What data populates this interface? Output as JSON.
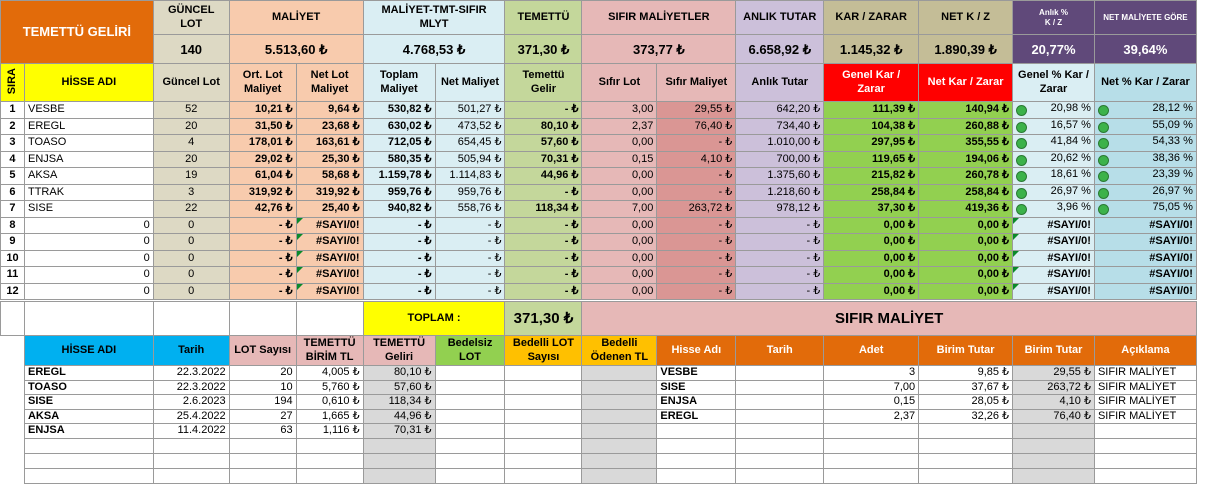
{
  "colors": {
    "orange": "#e26b0a",
    "tan": "#ddd9c4",
    "peach": "#f8cbad",
    "lightblue": "#b7dee8",
    "paleblue": "#daeef3",
    "green": "#c4d79b",
    "pink": "#e6b8b7",
    "lavender": "#ccc0da",
    "tan2": "#d9d0b3",
    "olive": "#c4bd97",
    "purple": "#60497a",
    "yellow": "#ffff00",
    "red": "#ff0000",
    "brightgreen": "#92d050",
    "blue": "#00b0f0",
    "gold": "#ffc000",
    "gray": "#d9d9d9"
  },
  "summary": {
    "title": "TEMETTÜ GELİRİ",
    "headers": [
      "GÜNCEL LOT",
      "MALİYET",
      "MALİYET-TMT-SIFIR MLYT",
      "TEMETTÜ",
      "SIFIR MALİYETLER",
      "ANLIK TUTAR",
      "KAR / ZARAR",
      "NET K / Z",
      "Anlık %\nK / Z",
      "NET MALİYETE GÖRE"
    ],
    "values": [
      "140",
      "5.513,60 ₺",
      "4.768,53 ₺",
      "371,30 ₺",
      "373,77 ₺",
      "6.658,92 ₺",
      "1.145,32 ₺",
      "1.890,39 ₺",
      "20,77%",
      "39,64%"
    ]
  },
  "columns": {
    "sira": "SIRA",
    "hisse": "HİSSE ADI",
    "guncel_lot": "Güncel Lot",
    "ort_lot": "Ort. Lot Maliyet",
    "net_lot": "Net Lot Maliyet",
    "toplam": "Toplam Maliyet",
    "net_maliyet": "Net Maliyet",
    "temettu_gelir": "Temettü Gelir",
    "sifir_lot": "Sıfır Lot",
    "sifir_maliyet": "Sıfır Maliyet",
    "anlik_tutar": "Anlık Tutar",
    "genel_kz": "Genel Kar / Zarar",
    "net_kz": "Net Kar / Zarar",
    "genel_pct": "Genel % Kar / Zarar",
    "net_pct": "Net % Kar / Zarar"
  },
  "portfolio": [
    {
      "no": "1",
      "name": "VESBE",
      "zero": "",
      "lot": "52",
      "ort": "10,21 ₺",
      "netlot": "9,64 ₺",
      "toplam": "530,82 ₺",
      "netm": "501,27 ₺",
      "tmt": "-   ₺",
      "slot": "3,00",
      "smal": "29,55 ₺",
      "anlik": "642,20 ₺",
      "gkz": "111,39 ₺",
      "nkz": "140,94 ₺",
      "gpct": "20,98 %",
      "npct": "28,12 %"
    },
    {
      "no": "2",
      "name": "EREGL",
      "zero": "",
      "lot": "20",
      "ort": "31,50 ₺",
      "netlot": "23,68 ₺",
      "toplam": "630,02 ₺",
      "netm": "473,52 ₺",
      "tmt": "80,10 ₺",
      "slot": "2,37",
      "smal": "76,40 ₺",
      "anlik": "734,40 ₺",
      "gkz": "104,38 ₺",
      "nkz": "260,88 ₺",
      "gpct": "16,57 %",
      "npct": "55,09 %"
    },
    {
      "no": "3",
      "name": "TOASO",
      "zero": "",
      "lot": "4",
      "ort": "178,01 ₺",
      "netlot": "163,61 ₺",
      "toplam": "712,05 ₺",
      "netm": "654,45 ₺",
      "tmt": "57,60 ₺",
      "slot": "0,00",
      "smal": "-   ₺",
      "anlik": "1.010,00 ₺",
      "gkz": "297,95 ₺",
      "nkz": "355,55 ₺",
      "gpct": "41,84 %",
      "npct": "54,33 %"
    },
    {
      "no": "4",
      "name": "ENJSA",
      "zero": "",
      "lot": "20",
      "ort": "29,02 ₺",
      "netlot": "25,30 ₺",
      "toplam": "580,35 ₺",
      "netm": "505,94 ₺",
      "tmt": "70,31 ₺",
      "slot": "0,15",
      "smal": "4,10 ₺",
      "anlik": "700,00 ₺",
      "gkz": "119,65 ₺",
      "nkz": "194,06 ₺",
      "gpct": "20,62 %",
      "npct": "38,36 %"
    },
    {
      "no": "5",
      "name": "AKSA",
      "zero": "",
      "lot": "19",
      "ort": "61,04 ₺",
      "netlot": "58,68 ₺",
      "toplam": "1.159,78 ₺",
      "netm": "1.114,83 ₺",
      "tmt": "44,96 ₺",
      "slot": "0,00",
      "smal": "-   ₺",
      "anlik": "1.375,60 ₺",
      "gkz": "215,82 ₺",
      "nkz": "260,78 ₺",
      "gpct": "18,61 %",
      "npct": "23,39 %"
    },
    {
      "no": "6",
      "name": "TTRAK",
      "zero": "",
      "lot": "3",
      "ort": "319,92 ₺",
      "netlot": "319,92 ₺",
      "toplam": "959,76 ₺",
      "netm": "959,76 ₺",
      "tmt": "-   ₺",
      "slot": "0,00",
      "smal": "-   ₺",
      "anlik": "1.218,60 ₺",
      "gkz": "258,84 ₺",
      "nkz": "258,84 ₺",
      "gpct": "26,97 %",
      "npct": "26,97 %"
    },
    {
      "no": "7",
      "name": "SISE",
      "zero": "",
      "lot": "22",
      "ort": "42,76 ₺",
      "netlot": "25,40 ₺",
      "toplam": "940,82 ₺",
      "netm": "558,76 ₺",
      "tmt": "118,34 ₺",
      "slot": "7,00",
      "smal": "263,72 ₺",
      "anlik": "978,12 ₺",
      "gkz": "37,30 ₺",
      "nkz": "419,36 ₺",
      "gpct": "3,96 %",
      "npct": "75,05 %"
    },
    {
      "no": "8",
      "name": "",
      "zero": "0",
      "lot": "0",
      "ort": "-   ₺",
      "netlot": "#SAYI/0!",
      "toplam": "-   ₺",
      "netm": "-   ₺",
      "tmt": "-   ₺",
      "slot": "0,00",
      "smal": "-   ₺",
      "anlik": "-   ₺",
      "gkz": "0,00 ₺",
      "nkz": "0,00 ₺",
      "gpct": "#SAYI/0!",
      "npct": "#SAYI/0!"
    },
    {
      "no": "9",
      "name": "",
      "zero": "0",
      "lot": "0",
      "ort": "-   ₺",
      "netlot": "#SAYI/0!",
      "toplam": "-   ₺",
      "netm": "-   ₺",
      "tmt": "-   ₺",
      "slot": "0,00",
      "smal": "-   ₺",
      "anlik": "-   ₺",
      "gkz": "0,00 ₺",
      "nkz": "0,00 ₺",
      "gpct": "#SAYI/0!",
      "npct": "#SAYI/0!"
    },
    {
      "no": "10",
      "name": "",
      "zero": "0",
      "lot": "0",
      "ort": "-   ₺",
      "netlot": "#SAYI/0!",
      "toplam": "-   ₺",
      "netm": "-   ₺",
      "tmt": "-   ₺",
      "slot": "0,00",
      "smal": "-   ₺",
      "anlik": "-   ₺",
      "gkz": "0,00 ₺",
      "nkz": "0,00 ₺",
      "gpct": "#SAYI/0!",
      "npct": "#SAYI/0!"
    },
    {
      "no": "11",
      "name": "",
      "zero": "0",
      "lot": "0",
      "ort": "-   ₺",
      "netlot": "#SAYI/0!",
      "toplam": "-   ₺",
      "netm": "-   ₺",
      "tmt": "-   ₺",
      "slot": "0,00",
      "smal": "-   ₺",
      "anlik": "-   ₺",
      "gkz": "0,00 ₺",
      "nkz": "0,00 ₺",
      "gpct": "#SAYI/0!",
      "npct": "#SAYI/0!"
    },
    {
      "no": "12",
      "name": "",
      "zero": "0",
      "lot": "0",
      "ort": "-   ₺",
      "netlot": "#SAYI/0!",
      "toplam": "-   ₺",
      "netm": "-   ₺",
      "tmt": "-   ₺",
      "slot": "0,00",
      "smal": "-   ₺",
      "anlik": "-   ₺",
      "gkz": "0,00 ₺",
      "nkz": "0,00 ₺",
      "gpct": "#SAYI/0!",
      "npct": "#SAYI/0!"
    }
  ],
  "totals": {
    "label": "TOPLAM :",
    "value": "371,30 ₺",
    "sifir_title": "SIFIR MALİYET"
  },
  "dividends": {
    "headers": [
      "HİSSE ADI",
      "Tarih",
      "LOT Sayısı",
      "TEMETTÜ BİRİM TL",
      "TEMETTÜ Geliri",
      "Bedelsiz LOT",
      "Bedelli LOT Sayısı",
      "Bedelli Ödenen TL"
    ],
    "rows": [
      [
        "EREGL",
        "22.3.2022",
        "20",
        "4,005 ₺",
        "80,10 ₺"
      ],
      [
        "TOASO",
        "22.3.2022",
        "10",
        "5,760 ₺",
        "57,60 ₺"
      ],
      [
        "SISE",
        "2.6.2023",
        "194",
        "0,610 ₺",
        "118,34 ₺"
      ],
      [
        "AKSA",
        "25.4.2022",
        "27",
        "1,665 ₺",
        "44,96 ₺"
      ],
      [
        "ENJSA",
        "11.4.2022",
        "63",
        "1,116 ₺",
        "70,31 ₺"
      ]
    ]
  },
  "zerocost": {
    "headers": [
      "Hisse Adı",
      "Tarih",
      "Adet",
      "Birim Tutar",
      "Birim Tutar",
      "Açıklama"
    ],
    "rows": [
      [
        "VESBE",
        "",
        "3",
        "9,85 ₺",
        "29,55 ₺",
        "SIFIR MALİYET"
      ],
      [
        "SISE",
        "",
        "7,00",
        "37,67 ₺",
        "263,72 ₺",
        "SIFIR MALİYET"
      ],
      [
        "ENJSA",
        "",
        "0,15",
        "28,05 ₺",
        "4,10 ₺",
        "SIFIR MALİYET"
      ],
      [
        "EREGL",
        "",
        "2,37",
        "32,26 ₺",
        "76,40 ₺",
        "SIFIR MALİYET"
      ]
    ]
  }
}
